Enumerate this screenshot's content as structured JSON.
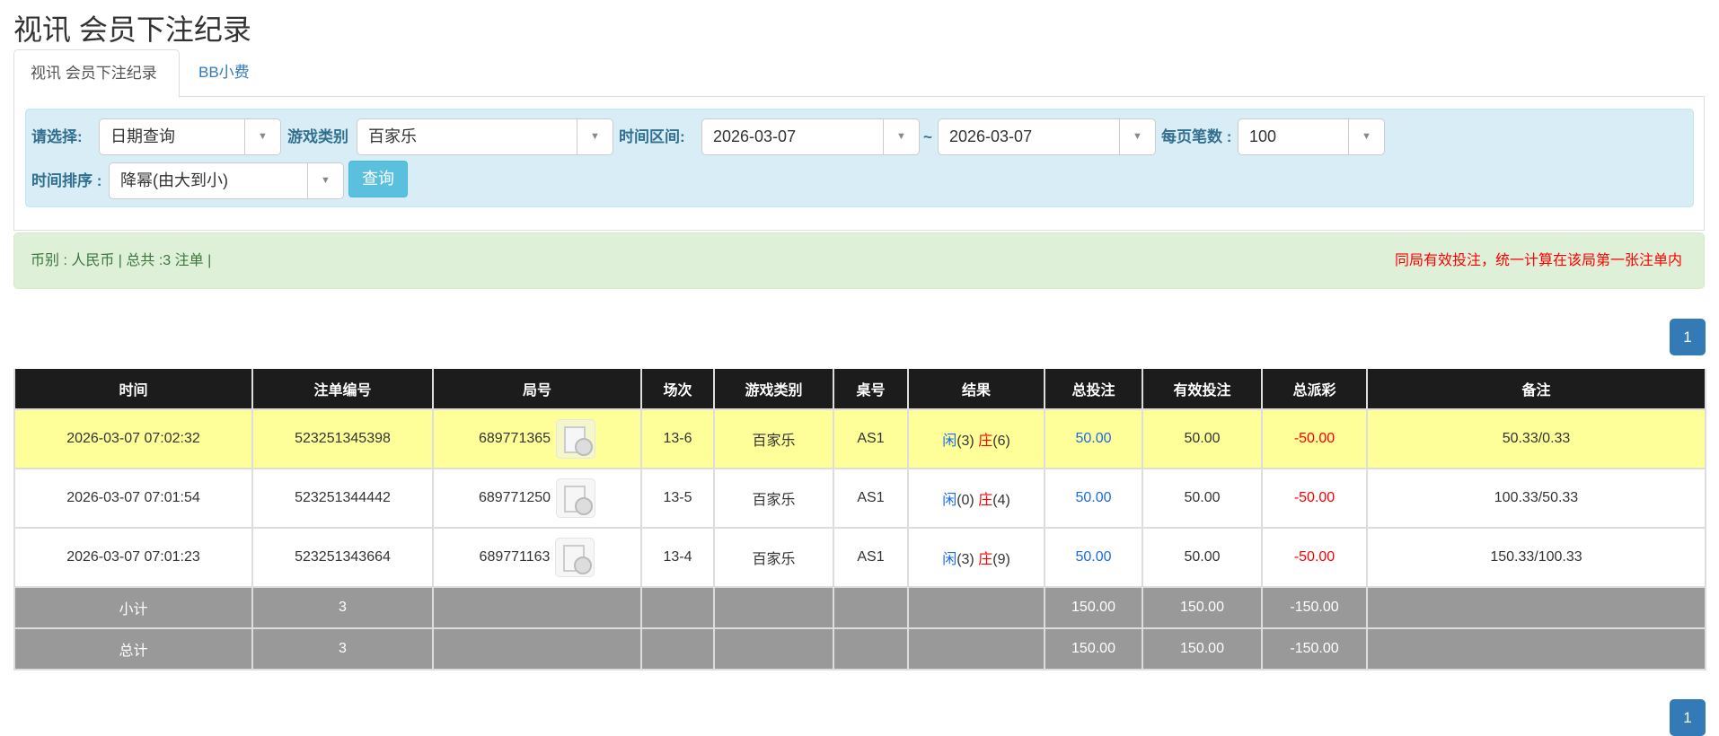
{
  "title": "视讯 会员下注纪录",
  "tabs": [
    {
      "label": "视讯 会员下注纪录",
      "active": true
    },
    {
      "label": "BB小费",
      "active": false
    }
  ],
  "filters": {
    "select_label": "请选择:",
    "select_value": "日期查询",
    "game_label": "游戏类别",
    "game_value": "百家乐",
    "range_label": "时间区间:",
    "date_from": "2026-03-07",
    "tilde": "~",
    "date_to": "2026-03-07",
    "per_page_label": "每页笔数 :",
    "per_page_value": "100",
    "sort_label": "时间排序 :",
    "sort_value": "降幂(由大到小)",
    "query_button": "查询"
  },
  "summary": {
    "text": "币别 : 人民币 | 总共 :3 注单 |",
    "note": "同局有效投注，统一计算在该局第一张注单内"
  },
  "pagination": {
    "current": "1"
  },
  "table": {
    "headers": [
      "时间",
      "注单编号",
      "局号",
      "场次",
      "游戏类别",
      "桌号",
      "结果",
      "总投注",
      "有效投注",
      "总派彩",
      "备注"
    ],
    "rows": [
      {
        "time": "2026-03-07 07:02:32",
        "bet_id": "523251345398",
        "round": "689771365",
        "session": "13-6",
        "game": "百家乐",
        "table": "AS1",
        "player": "闲",
        "player_pts": "(3)",
        "banker": "庄",
        "banker_pts": "(6)",
        "total_bet": "50.00",
        "valid_bet": "50.00",
        "payout": "-50.00",
        "remark": "50.33/0.33",
        "highlight": true
      },
      {
        "time": "2026-03-07 07:01:54",
        "bet_id": "523251344442",
        "round": "689771250",
        "session": "13-5",
        "game": "百家乐",
        "table": "AS1",
        "player": "闲",
        "player_pts": "(0)",
        "banker": "庄",
        "banker_pts": "(4)",
        "total_bet": "50.00",
        "valid_bet": "50.00",
        "payout": "-50.00",
        "remark": "100.33/50.33",
        "highlight": false
      },
      {
        "time": "2026-03-07 07:01:23",
        "bet_id": "523251343664",
        "round": "689771163",
        "session": "13-4",
        "game": "百家乐",
        "table": "AS1",
        "player": "闲",
        "player_pts": "(3)",
        "banker": "庄",
        "banker_pts": "(9)",
        "total_bet": "50.00",
        "valid_bet": "50.00",
        "payout": "-50.00",
        "remark": "150.33/100.33",
        "highlight": false
      }
    ],
    "subtotal": {
      "label": "小计",
      "count": "3",
      "total_bet": "150.00",
      "valid_bet": "150.00",
      "payout": "-150.00"
    },
    "total": {
      "label": "总计",
      "count": "3",
      "total_bet": "150.00",
      "valid_bet": "150.00",
      "payout": "-150.00"
    }
  }
}
